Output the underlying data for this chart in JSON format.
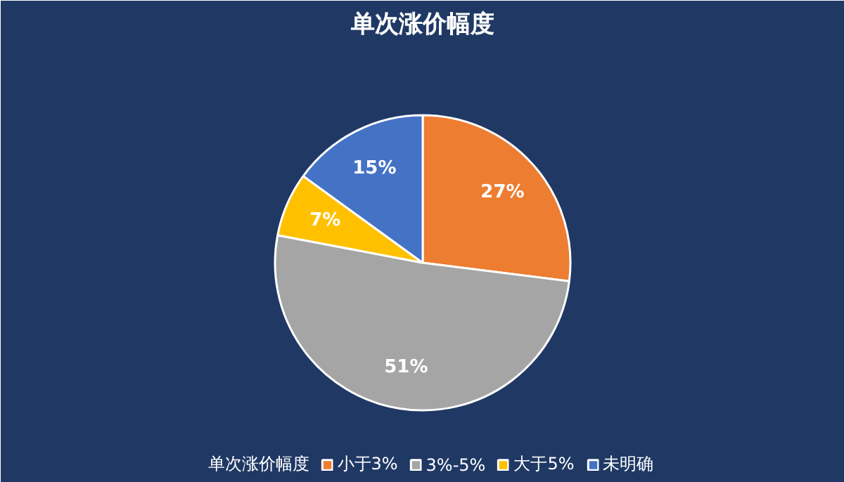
{
  "chart_data": {
    "type": "pie",
    "title": "单次涨价幅度",
    "categories": [
      "单次涨价幅度",
      "小于3%",
      "3%-5%",
      "大于5%",
      "未明确"
    ],
    "values": [
      0,
      27,
      51,
      7,
      15
    ],
    "colors": [
      "#4472c4",
      "#ed7d31",
      "#a5a5a5",
      "#ffc000",
      "#4472c4"
    ],
    "value_labels": [
      null,
      "27%",
      "51%",
      "7%",
      "15%"
    ],
    "legend": "bottom"
  }
}
